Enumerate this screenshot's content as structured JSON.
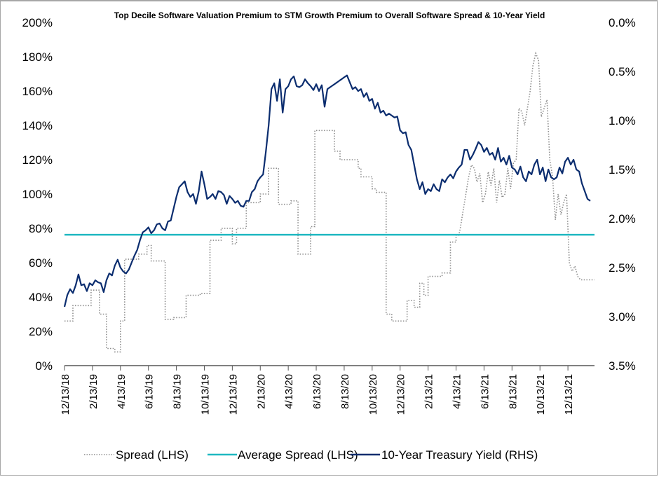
{
  "chart_data": {
    "type": "line",
    "title": "Top Decile Software Valuation Premium to STM Growth Premium to Overall Software Spread & 10-Year Yield",
    "xlabel": "",
    "ylabel_left": "",
    "ylabel_right": "",
    "x_range": [
      "12/13/18",
      "2/10/22"
    ],
    "x_tick_labels": [
      "12/13/18",
      "2/13/19",
      "4/13/19",
      "6/13/19",
      "8/13/19",
      "10/13/19",
      "12/13/19",
      "2/13/20",
      "4/13/20",
      "6/13/20",
      "8/13/20",
      "10/13/20",
      "12/13/20",
      "2/13/21",
      "4/13/21",
      "6/13/21",
      "8/13/21",
      "10/13/21",
      "12/13/21"
    ],
    "y_left": {
      "range": [
        0,
        200
      ],
      "ticks": [
        0,
        20,
        40,
        60,
        80,
        100,
        120,
        140,
        160,
        180,
        200
      ],
      "tick_labels": [
        "0%",
        "20%",
        "40%",
        "60%",
        "80%",
        "100%",
        "120%",
        "140%",
        "160%",
        "180%",
        "200%"
      ]
    },
    "y_right": {
      "range": [
        0,
        3.5
      ],
      "inverted": true,
      "ticks": [
        0,
        0.5,
        1.0,
        1.5,
        2.0,
        2.5,
        3.0,
        3.5
      ],
      "tick_labels": [
        "0.0%",
        "0.5%",
        "1.0%",
        "1.5%",
        "2.0%",
        "2.5%",
        "3.0%",
        "3.5%"
      ]
    },
    "grid": false,
    "legend_position": "bottom",
    "series": [
      {
        "name": "Spread (LHS)",
        "axis": "left",
        "style": "dotted",
        "color": "#8c8c8c",
        "x_months": [
          0,
          0.6,
          0.6,
          1.9,
          1.9,
          2.5,
          2.5,
          3.0,
          3.0,
          3.6,
          3.6,
          4.0,
          4.0,
          4.3,
          4.3,
          5.3,
          5.3,
          5.9,
          5.9,
          6.2,
          6.2,
          7.2,
          7.2,
          7.8,
          7.8,
          8.7,
          8.7,
          9.7,
          9.7,
          10.4,
          10.4,
          11.2,
          11.2,
          12.0,
          12.0,
          12.3,
          12.3,
          13.0,
          13.0,
          14.0,
          14.0,
          14.6,
          14.6,
          15.3,
          15.3,
          16.2,
          16.2,
          16.7,
          16.7,
          17.6,
          17.6,
          17.9,
          17.9,
          19.3,
          19.3,
          19.7,
          19.7,
          21.0,
          21.0,
          21.2,
          21.2,
          22.0,
          22.0,
          22.3,
          22.3,
          23.0,
          23.0,
          23.4,
          23.4,
          24.5,
          24.5,
          25.0,
          25.0,
          25.4,
          25.4,
          25.7,
          25.7,
          26.0,
          26.0,
          27.0,
          27.0,
          27.6,
          27.6,
          28.0,
          28.0,
          28.2,
          28.3,
          28.5,
          28.7,
          28.9,
          29.1,
          29.3,
          29.5,
          29.7,
          29.9,
          30.1,
          30.3,
          30.5,
          30.7,
          30.9,
          31.1,
          31.3,
          31.5,
          31.7,
          31.9,
          32.1,
          32.3,
          32.5,
          32.7,
          32.9,
          33.1,
          33.3,
          33.5,
          33.7,
          33.9,
          34.1,
          34.3,
          34.5,
          34.7,
          34.9,
          35.1,
          35.3,
          35.5,
          35.7,
          35.9,
          36.1,
          36.3,
          36.5,
          36.7,
          36.9,
          37.1,
          37.3,
          37.5,
          37.7,
          37.9
        ],
        "values": [
          26,
          26,
          35,
          35,
          44,
          44,
          30,
          30,
          10,
          10,
          8,
          8,
          26,
          26,
          62,
          62,
          65,
          65,
          70,
          70,
          61,
          61,
          27,
          27,
          28,
          28,
          41,
          41,
          42,
          42,
          73,
          73,
          80,
          80,
          71,
          71,
          80,
          80,
          95,
          95,
          100,
          100,
          115,
          115,
          94,
          94,
          96,
          96,
          65,
          65,
          81,
          81,
          137,
          137,
          125,
          125,
          120,
          120,
          115,
          115,
          110,
          110,
          103,
          103,
          101,
          101,
          30,
          30,
          26,
          26,
          38,
          38,
          34,
          34,
          48,
          48,
          41,
          41,
          52,
          52,
          54,
          54,
          72,
          72,
          76,
          76,
          80,
          90,
          100,
          110,
          117,
          115,
          107,
          112,
          95,
          100,
          113,
          105,
          115,
          95,
          108,
          98,
          100,
          115,
          103,
          118,
          120,
          150,
          148,
          140,
          150,
          160,
          175,
          182,
          178,
          145,
          150,
          155,
          120,
          110,
          85,
          100,
          88,
          95,
          100,
          60,
          55,
          58,
          52,
          50,
          50,
          50,
          50,
          50,
          50,
          50,
          50
        ]
      },
      {
        "name": "Average Spread (LHS)",
        "axis": "left",
        "style": "solid",
        "color": "#1fb8c1",
        "value": 76.3
      },
      {
        "name": "10-Year Treasury Yield (RHS)",
        "axis": "right",
        "style": "solid",
        "color": "#0b2d6f",
        "x_months": [
          0,
          0.2,
          0.4,
          0.6,
          0.8,
          1.0,
          1.2,
          1.4,
          1.6,
          1.8,
          2.0,
          2.2,
          2.4,
          2.6,
          2.8,
          3.0,
          3.2,
          3.4,
          3.6,
          3.8,
          4.0,
          4.2,
          4.4,
          4.6,
          4.8,
          5.0,
          5.2,
          5.4,
          5.6,
          5.8,
          6.0,
          6.2,
          6.4,
          6.6,
          6.8,
          7.0,
          7.2,
          7.4,
          7.6,
          7.8,
          8.0,
          8.2,
          8.4,
          8.6,
          8.8,
          9.0,
          9.2,
          9.4,
          9.6,
          9.8,
          10.0,
          10.2,
          10.4,
          10.6,
          10.8,
          11.0,
          11.2,
          11.4,
          11.6,
          11.8,
          12.0,
          12.2,
          12.4,
          12.6,
          12.8,
          13.0,
          13.2,
          13.4,
          13.6,
          13.8,
          14.0,
          14.2,
          14.4,
          14.6,
          14.8,
          15.0,
          15.2,
          15.4,
          15.6,
          15.8,
          16.0,
          16.2,
          16.4,
          16.6,
          16.8,
          17.0,
          17.2,
          17.4,
          17.6,
          17.8,
          18.0,
          18.2,
          18.4,
          18.6,
          18.8,
          19.0,
          19.2,
          19.4,
          19.6,
          19.8,
          20.0,
          20.2,
          20.4,
          20.6,
          20.8,
          21.0,
          21.2,
          21.4,
          21.6,
          21.8,
          22.0,
          22.2,
          22.4,
          22.6,
          22.8,
          23.0,
          23.2,
          23.4,
          23.6,
          23.8,
          24.0,
          24.2,
          24.4,
          24.6,
          24.8,
          25.0,
          25.2,
          25.4,
          25.6,
          25.8,
          26.0,
          26.2,
          26.4,
          26.6,
          26.8,
          27.0,
          27.2,
          27.4,
          27.6,
          27.8,
          28.0,
          28.2,
          28.4,
          28.6,
          28.8,
          29.0,
          29.2,
          29.4,
          29.6,
          29.8,
          30.0,
          30.2,
          30.4,
          30.6,
          30.8,
          31.0,
          31.2,
          31.4,
          31.6,
          31.8,
          32.0,
          32.2,
          32.4,
          32.6,
          32.8,
          33.0,
          33.2,
          33.4,
          33.6,
          33.8,
          34.0,
          34.2,
          34.4,
          34.6,
          34.8,
          35.0,
          35.2,
          35.4,
          35.6,
          35.8,
          36.0,
          36.2,
          36.4,
          36.6,
          36.8,
          37.0,
          37.2,
          37.4,
          37.6
        ],
        "values": [
          2.9,
          2.78,
          2.72,
          2.76,
          2.68,
          2.57,
          2.68,
          2.67,
          2.74,
          2.66,
          2.68,
          2.63,
          2.65,
          2.66,
          2.75,
          2.63,
          2.56,
          2.58,
          2.48,
          2.42,
          2.5,
          2.54,
          2.56,
          2.52,
          2.45,
          2.38,
          2.32,
          2.22,
          2.14,
          2.12,
          2.09,
          2.15,
          2.12,
          2.06,
          2.05,
          2.1,
          2.12,
          2.03,
          2.02,
          1.9,
          1.78,
          1.68,
          1.65,
          1.62,
          1.73,
          1.78,
          1.75,
          1.85,
          1.72,
          1.52,
          1.65,
          1.8,
          1.78,
          1.75,
          1.8,
          1.72,
          1.73,
          1.76,
          1.85,
          1.77,
          1.8,
          1.84,
          1.82,
          1.87,
          1.88,
          1.82,
          1.82,
          1.73,
          1.7,
          1.62,
          1.58,
          1.55,
          1.32,
          1.05,
          0.68,
          0.62,
          0.8,
          0.58,
          0.92,
          0.68,
          0.65,
          0.58,
          0.55,
          0.65,
          0.66,
          0.64,
          0.58,
          0.62,
          0.65,
          0.69,
          0.63,
          0.7,
          0.64,
          0.86,
          0.68,
          0.66,
          0.64,
          0.62,
          0.6,
          0.58,
          0.56,
          0.54,
          0.61,
          0.68,
          0.66,
          0.7,
          0.68,
          0.76,
          0.72,
          0.8,
          0.78,
          0.88,
          0.82,
          0.92,
          0.9,
          0.95,
          0.93,
          0.95,
          0.97,
          0.96,
          1.1,
          1.13,
          1.12,
          1.25,
          1.3,
          1.45,
          1.6,
          1.7,
          1.63,
          1.75,
          1.7,
          1.72,
          1.65,
          1.7,
          1.72,
          1.6,
          1.63,
          1.58,
          1.55,
          1.59,
          1.52,
          1.48,
          1.45,
          1.3,
          1.3,
          1.4,
          1.35,
          1.29,
          1.22,
          1.25,
          1.32,
          1.28,
          1.35,
          1.33,
          1.4,
          1.28,
          1.42,
          1.38,
          1.45,
          1.36,
          1.48,
          1.5,
          1.55,
          1.47,
          1.58,
          1.62,
          1.52,
          1.55,
          1.45,
          1.4,
          1.55,
          1.48,
          1.62,
          1.5,
          1.58,
          1.6,
          1.58,
          1.48,
          1.54,
          1.42,
          1.38,
          1.45,
          1.4,
          1.5,
          1.52,
          1.64,
          1.72,
          1.8,
          1.82,
          1.75
        ]
      }
    ]
  },
  "legend": [
    {
      "label": "Spread (LHS)",
      "icon": "dotted-line-swatch"
    },
    {
      "label": "Average Spread (LHS)",
      "icon": "solid-teal-line-swatch"
    },
    {
      "label": "10-Year Treasury Yield (RHS)",
      "icon": "solid-navy-line-swatch"
    }
  ]
}
